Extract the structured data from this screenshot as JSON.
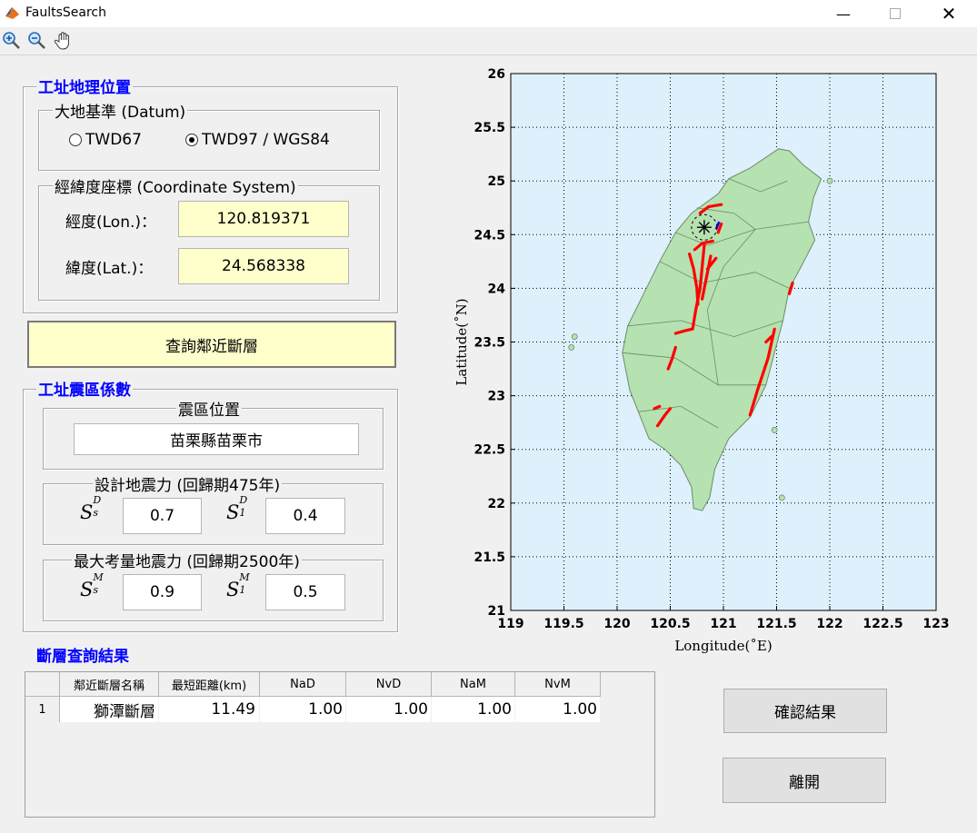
{
  "window": {
    "title": "FaultsSearch",
    "icons": [
      "matlab-icon",
      "minimize-icon",
      "maximize-icon",
      "close-icon"
    ]
  },
  "toolbar": {
    "tools": [
      "zoom-in-icon",
      "zoom-out-icon",
      "pan-hand-icon"
    ]
  },
  "site_location": {
    "title": "工址地理位置",
    "datum": {
      "title": "大地基準 (Datum)",
      "options": [
        "TWD67",
        "TWD97 / WGS84"
      ],
      "selected": "TWD97 / WGS84"
    },
    "coords": {
      "title": "經緯度座標 (Coordinate System)",
      "lon_label": "經度(Lon.)：",
      "lon_value": "120.819371",
      "lat_label": "緯度(Lat.)：",
      "lat_value": "24.568338"
    }
  },
  "query_button": "查詢鄰近斷層",
  "seismic": {
    "title": "工址震區係數",
    "zone": {
      "title": "震區位置",
      "value": "苗栗縣苗栗市"
    },
    "design": {
      "title": "設計地震力 (回歸期475年)",
      "ss_label": "S",
      "s1_label": "S",
      "ss_value": "0.7",
      "s1_value": "0.4",
      "sup": "D",
      "sub_s": "s",
      "sub_1": "1"
    },
    "mce": {
      "title": "最大考量地震力 (回歸期2500年)",
      "ss_value": "0.9",
      "s1_value": "0.5",
      "sup": "M",
      "sub_s": "s",
      "sub_1": "1"
    }
  },
  "results": {
    "title": "斷層查詢結果",
    "columns": [
      "鄰近斷層名稱",
      "最短距離(km)",
      "NaD",
      "NvD",
      "NaM",
      "NvM"
    ],
    "rows": [
      {
        "index": "1",
        "name": "獅潭斷層",
        "distance": "11.49",
        "NaD": "1.00",
        "NvD": "1.00",
        "NaM": "1.00",
        "NvM": "1.00"
      }
    ]
  },
  "buttons": {
    "confirm": "確認結果",
    "exit": "離開"
  },
  "chart_data": {
    "type": "scatter",
    "xlabel": "Longitude(˚E)",
    "ylabel": "Latitude(˚N)",
    "xlim": [
      119,
      123
    ],
    "ylim": [
      21,
      26
    ],
    "x_ticks": [
      "119",
      "119.5",
      "120",
      "120.5",
      "121",
      "121.5",
      "122",
      "122.5",
      "123"
    ],
    "y_ticks": [
      "21",
      "21.5",
      "22",
      "22.5",
      "23",
      "23.5",
      "24",
      "24.5",
      "25",
      "25.5",
      "26"
    ],
    "grid": true,
    "site_marker": {
      "lon": 120.819371,
      "lat": 24.568338,
      "symbol": "asterisk"
    },
    "colors": {
      "land": "#b5e2b0",
      "sea": "#ddf0fb",
      "fault": "#ff0000",
      "nearest_fault": "#0000ff"
    },
    "faults": [
      [
        [
          120.78,
          24.7
        ],
        [
          120.86,
          24.76
        ],
        [
          120.98,
          24.78
        ]
      ],
      [
        [
          120.95,
          24.52
        ],
        [
          120.98,
          24.6
        ]
      ],
      [
        [
          120.73,
          24.36
        ],
        [
          120.8,
          24.42
        ],
        [
          120.9,
          24.44
        ]
      ],
      [
        [
          120.68,
          24.32
        ],
        [
          120.72,
          24.18
        ],
        [
          120.75,
          24.0
        ],
        [
          120.76,
          23.85
        ]
      ],
      [
        [
          120.82,
          24.4
        ],
        [
          120.8,
          24.2
        ],
        [
          120.78,
          24.0
        ],
        [
          120.74,
          23.8
        ],
        [
          120.71,
          23.62
        ]
      ],
      [
        [
          120.88,
          24.3
        ],
        [
          120.84,
          24.1
        ],
        [
          120.8,
          23.9
        ]
      ],
      [
        [
          120.93,
          24.28
        ],
        [
          120.85,
          24.18
        ]
      ],
      [
        [
          120.55,
          23.58
        ],
        [
          120.62,
          23.6
        ],
        [
          120.7,
          23.62
        ]
      ],
      [
        [
          120.48,
          23.25
        ],
        [
          120.52,
          23.35
        ],
        [
          120.55,
          23.45
        ]
      ],
      [
        [
          120.35,
          22.88
        ],
        [
          120.4,
          22.9
        ]
      ],
      [
        [
          120.38,
          22.72
        ],
        [
          120.45,
          22.82
        ],
        [
          120.5,
          22.88
        ]
      ],
      [
        [
          121.25,
          22.82
        ],
        [
          121.32,
          23.05
        ],
        [
          121.42,
          23.35
        ],
        [
          121.48,
          23.62
        ]
      ],
      [
        [
          121.4,
          23.5
        ],
        [
          121.45,
          23.55
        ]
      ],
      [
        [
          121.62,
          23.95
        ],
        [
          121.65,
          24.05
        ]
      ]
    ]
  }
}
